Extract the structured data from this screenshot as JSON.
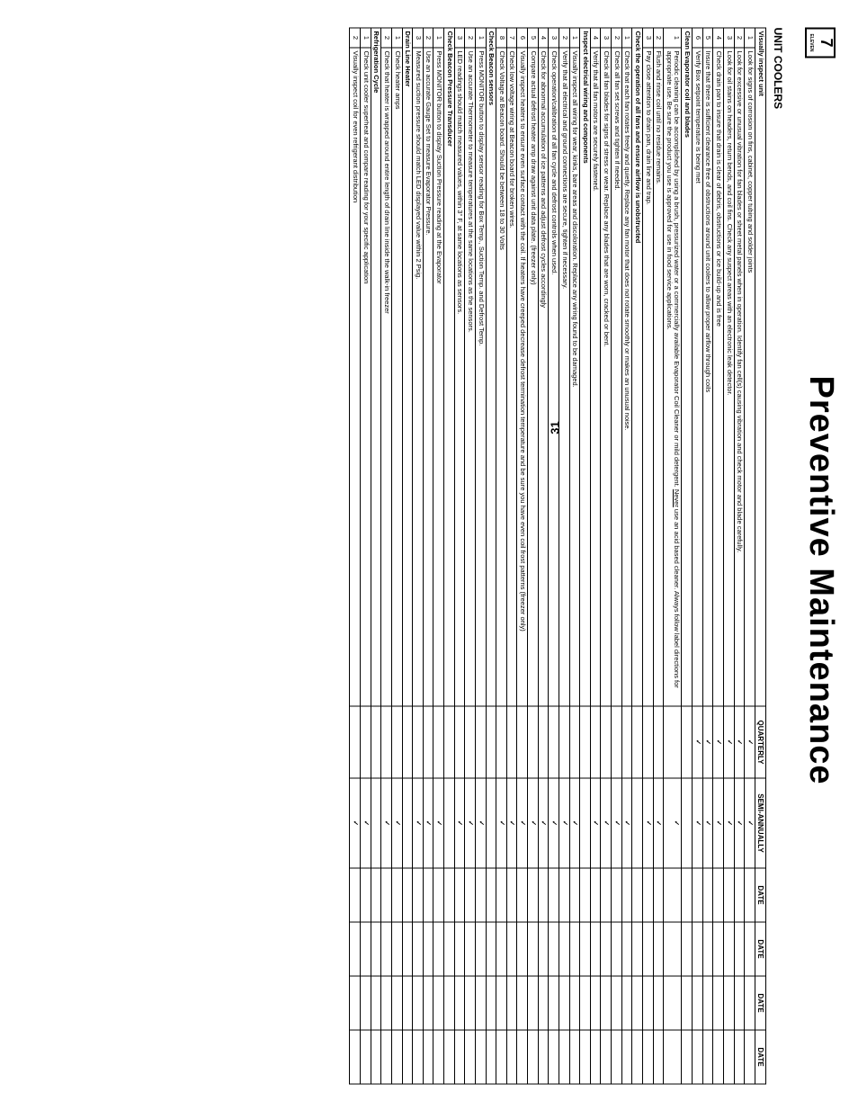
{
  "page_title": "Preventive Maintenance",
  "page_number": "31",
  "doc_title": "UNIT COOLERS",
  "columns": {
    "quarterly": "QUARTERLY",
    "semi": "SEMI-ANNUALLY",
    "date1": "DATE",
    "date2": "DATE",
    "date3": "DATE",
    "date4": "DATE"
  },
  "sections": [
    {
      "title": "Visually inspect unit",
      "rows": [
        {
          "n": "1",
          "t": "Look for signs of corrosion on fins, cabinet, copper tubing and solder joints",
          "q": true,
          "s": true
        },
        {
          "n": "2",
          "t": "Look for excessive or unusual vibration for fan blades or sheet metal panels when in operation. Identify fan cell(s) causing vibration and check motor and blade carefully.",
          "q": true,
          "s": true
        },
        {
          "n": "3",
          "t": "Look for oil stains on headers, return bends, and coil fins. Check any suspect areas with an electronic leak detector.",
          "q": true,
          "s": true
        },
        {
          "n": "4",
          "t": "Check drain pan to insure that drain is clear of debris, obstructions or ice build-up and is free",
          "q": true,
          "s": true
        },
        {
          "n": "5",
          "t": "Insure that there is sufficient clearance free of obstructions around unit coolers to allow proper airflow through coils",
          "q": true,
          "s": true
        },
        {
          "n": "6",
          "t": "Verify Box setpoint temperature is being met",
          "q": true,
          "s": true
        }
      ]
    },
    {
      "title": "Clean Evaporator coil and blades",
      "rows": [
        {
          "n": "1",
          "t": "Periodic cleaning can be accomplished by using a brush, pressurized water or a commercially available Evaporator Coil Cleaner or mild detergent. <u>Never</u> use an acid based cleaner. Always follow label directions for appropriate use. Be sure the product you use is approved for use in food service applications.",
          "q": false,
          "s": true
        },
        {
          "n": "2",
          "t": "Flush and rinse coil until no residue remains.",
          "q": false,
          "s": true
        },
        {
          "n": "3",
          "t": "Pay close attention to drain pan, drain line and trap.",
          "q": false,
          "s": true
        }
      ]
    },
    {
      "title": "Check the operation of all fans and ensure airflow is unobstructed",
      "rows": [
        {
          "n": "1",
          "t": "Check that each fan rotates freely and quietly. Replace any fan motor that does not rotate smoothly or makes an unusual noise.",
          "q": false,
          "s": true
        },
        {
          "n": "2",
          "t": "Check all fan set screws and tighten if needed.",
          "q": false,
          "s": true
        },
        {
          "n": "3",
          "t": "Check all fan blades for signs of stress or wear. Replace any blades that are worn, cracked or bent.",
          "q": false,
          "s": true
        },
        {
          "n": "4",
          "t": "Verify that all fan motors are securely fastened.",
          "q": false,
          "s": true
        }
      ]
    },
    {
      "title": "Inspect electrical wiring and components",
      "rows": [
        {
          "n": "1",
          "t": "Visually inspect all wiring for wear, kinks, bare areas and discoloration. Replace any wiring found to be damaged.",
          "q": false,
          "s": true
        },
        {
          "n": "2",
          "t": "Verify that all electrical and ground connections are secure, tighten if necessary.",
          "q": false,
          "s": true
        },
        {
          "n": "3",
          "t": "Check operation/calibration of all fan cycle and defrost controls when used.",
          "q": false,
          "s": true
        },
        {
          "n": "4",
          "t": "Check for abnormal accumulation of ice patterns and adjust defrost cycles accordingly",
          "q": false,
          "s": true
        },
        {
          "n": "5",
          "t": "Compare actual defrost heater amp draw against unit data plate. (freezer only)",
          "q": false,
          "s": true
        },
        {
          "n": "6",
          "t": "Visually inspect heaters to ensure even surface contact with the coil. If heaters have creeped decrease defrost termination temperature and be sure you have even coil frost patterns (freezer only)",
          "q": false,
          "s": true
        },
        {
          "n": "7",
          "t": "Check low voltage wiring at Beacon board for broken wires.",
          "q": false,
          "s": true
        },
        {
          "n": "8",
          "t": "Check Voltage at Beacon board. Should be between 18 to 30 Volts",
          "q": false,
          "s": true
        }
      ]
    },
    {
      "title": "Check Beacon sensors",
      "rows": [
        {
          "n": "1",
          "t": "Press MONITOR button to display sensor reading for Box Temp., Suction Temp. and Defrost Temp.",
          "q": false,
          "s": true
        },
        {
          "n": "2",
          "t": "Use an accurate Thermometer to measure temperatures at the same locations as the sensors.",
          "q": false,
          "s": true
        },
        {
          "n": "3",
          "t": "LED readings should match measured values, within 3° F, at same locations as sensors.",
          "q": false,
          "s": true
        }
      ]
    },
    {
      "title": "Check Beacon Pressure Transducer",
      "rows": [
        {
          "n": "1",
          "t": "Press MONITOR button to display Suction Pressure reading at the Evaporator",
          "q": false,
          "s": true
        },
        {
          "n": "2",
          "t": "Use an accurate Gauge Set to measure Evaporator Pressure.",
          "q": false,
          "s": true
        },
        {
          "n": "3",
          "t": "Measured suction pressure should match LED displayed value within 2 Psig.",
          "q": false,
          "s": true
        }
      ]
    },
    {
      "title": "Drain Line Heater",
      "rows": [
        {
          "n": "1",
          "t": "Check heater amps",
          "q": false,
          "s": true
        },
        {
          "n": "2",
          "t": "Check that heater is wrapped around entire length of drain line inside the walk-in freezer",
          "q": false,
          "s": true
        }
      ]
    },
    {
      "title": "Refrigeration Cycle",
      "rows": [
        {
          "n": "1",
          "t": "Check unit cooler superheat and compare reading for your specific application",
          "q": false,
          "s": true
        },
        {
          "n": "2",
          "t": "Visually inspect coil for even refrigerant distribution",
          "q": false,
          "s": true
        }
      ]
    }
  ]
}
